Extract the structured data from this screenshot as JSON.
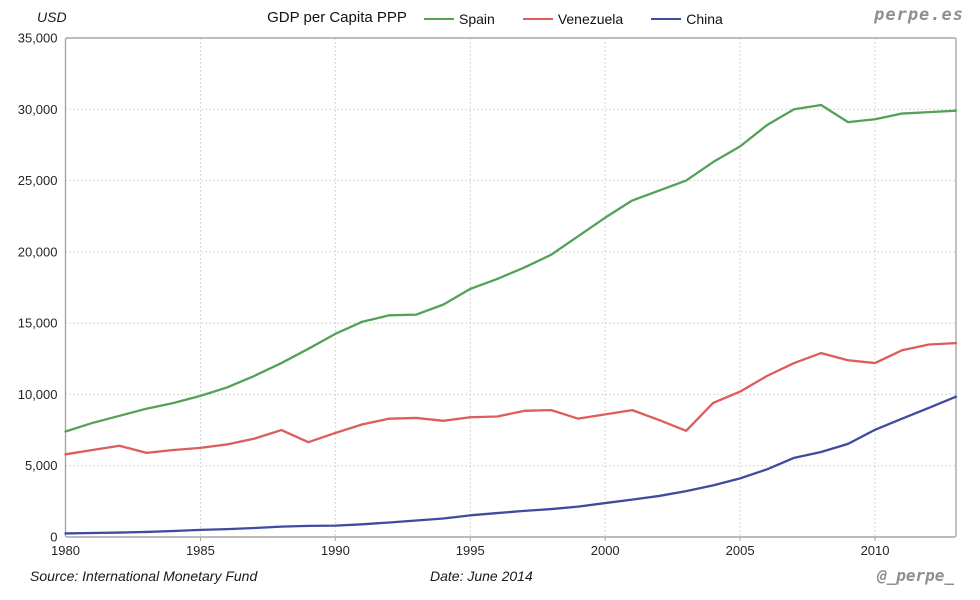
{
  "header": {
    "unit_label": "USD",
    "title": "GDP per Capita PPP",
    "watermark": "perpe.es"
  },
  "footer": {
    "source": "Source: International Monetary Fund",
    "date": "Date: June 2014",
    "handle": "@_perpe_"
  },
  "colors": {
    "spain": "#54a158",
    "venezuela": "#dd5c5c",
    "china": "#3f4b9e",
    "plot_border": "#a6a6a6",
    "gridline": "#c9c9c9",
    "tick_text": "#262626",
    "watermark_gray": "#8f8f8f"
  },
  "chart_data": {
    "type": "line",
    "title": "GDP per Capita PPP",
    "unit": "USD",
    "grid": "dotted",
    "legend_position": "top",
    "ylim": [
      0,
      35000
    ],
    "ytick_step": 5000,
    "ytick_labels": [
      "0",
      "5,000",
      "10,000",
      "15,000",
      "20,000",
      "25,000",
      "30,000",
      "35,000"
    ],
    "xticks": [
      1980,
      1985,
      1990,
      1995,
      2000,
      2005,
      2010
    ],
    "x": [
      1980,
      1981,
      1982,
      1983,
      1984,
      1985,
      1986,
      1987,
      1988,
      1989,
      1990,
      1991,
      1992,
      1993,
      1994,
      1995,
      1996,
      1997,
      1998,
      1999,
      2000,
      2001,
      2002,
      2003,
      2004,
      2005,
      2006,
      2007,
      2008,
      2009,
      2010,
      2011,
      2012,
      2013
    ],
    "series": [
      {
        "name": "Spain",
        "color": "#54a158",
        "values": [
          7400,
          8000,
          8500,
          9000,
          9400,
          9900,
          10500,
          11300,
          12200,
          13200,
          14250,
          15100,
          15550,
          15600,
          16300,
          17400,
          18100,
          18900,
          19800,
          21100,
          22400,
          23600,
          24300,
          25000,
          26300,
          27400,
          28900,
          30000,
          30300,
          29100,
          29300,
          29700,
          29800,
          29900
        ]
      },
      {
        "name": "Venezuela",
        "color": "#dd5c5c",
        "values": [
          5800,
          6100,
          6400,
          5900,
          6100,
          6250,
          6500,
          6900,
          7500,
          6650,
          7300,
          7900,
          8300,
          8350,
          8150,
          8400,
          8450,
          8850,
          8900,
          8300,
          8600,
          8900,
          8200,
          7450,
          9400,
          10200,
          11300,
          12200,
          12900,
          12400,
          12200,
          13100,
          13500,
          13600
        ]
      },
      {
        "name": "China",
        "color": "#3f4b9e",
        "values": [
          250,
          280,
          310,
          355,
          420,
          500,
          550,
          630,
          730,
          780,
          800,
          890,
          1020,
          1160,
          1300,
          1520,
          1680,
          1830,
          1960,
          2130,
          2380,
          2620,
          2880,
          3220,
          3620,
          4110,
          4750,
          5550,
          5960,
          6530,
          7520,
          8300,
          9060,
          9840
        ]
      }
    ]
  }
}
